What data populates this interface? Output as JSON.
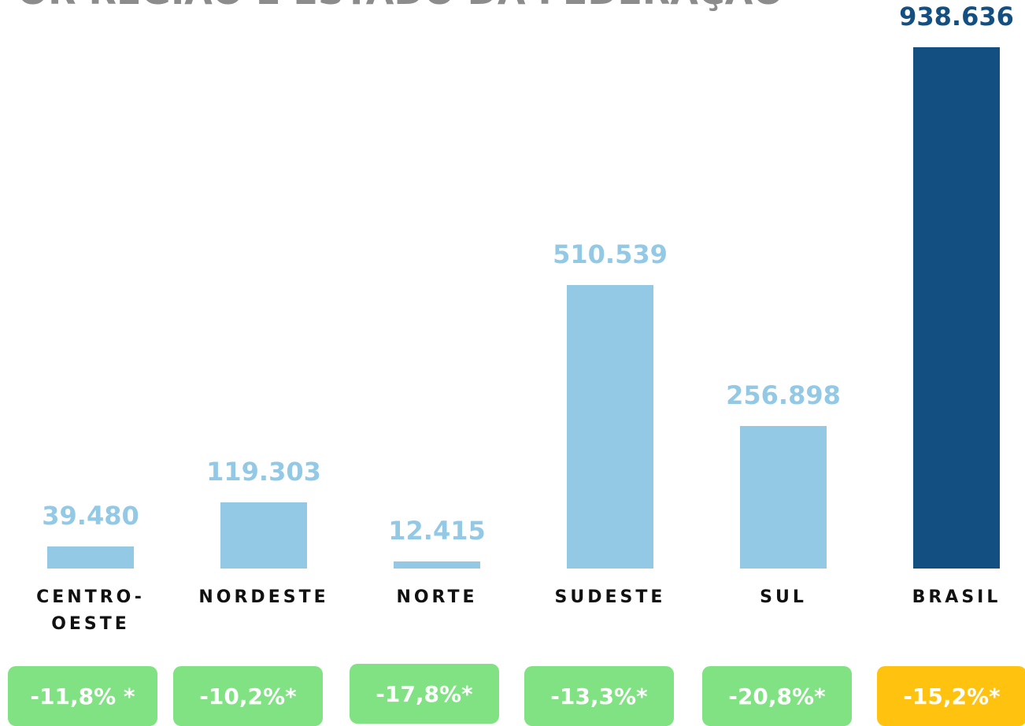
{
  "chart_data": {
    "type": "bar",
    "title": "OR REGIÃO E ESTADO DA FEDERAÇÃO",
    "categories": [
      "CENTRO-OESTE",
      "NORDESTE",
      "NORTE",
      "SUDESTE",
      "SUL",
      "BRASIL"
    ],
    "values": [
      39480,
      119303,
      12415,
      510539,
      256898,
      938636
    ],
    "value_labels": [
      "39.480",
      "119.303",
      "12.415",
      "510.539",
      "256.898",
      "938.636"
    ],
    "colors": [
      "#93c9e5",
      "#93c9e5",
      "#93c9e5",
      "#93c9e5",
      "#93c9e5",
      "#134f80"
    ],
    "annotations": [
      "-11,8% *",
      "-10,2%*",
      "-17,8%*",
      "-13,3%*",
      "-20,8%*",
      "-15,2%*"
    ],
    "annotation_colors": [
      "#80e283",
      "#80e283",
      "#80e283",
      "#80e283",
      "#80e283",
      "#ffc20e"
    ]
  }
}
